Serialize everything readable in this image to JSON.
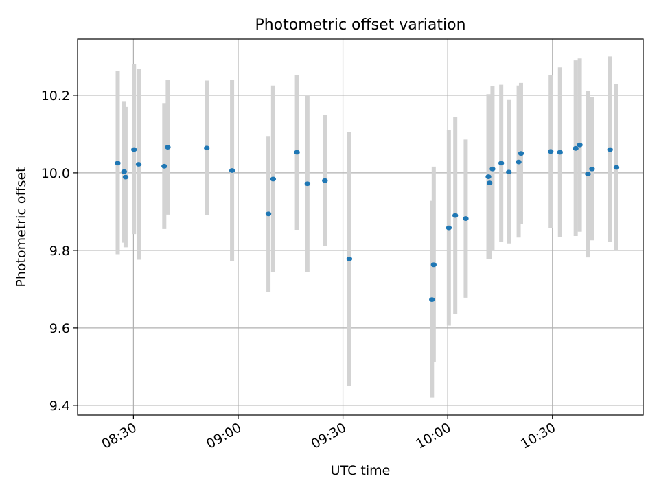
{
  "chart_data": {
    "type": "scatter",
    "title": "Photometric offset variation",
    "xlabel": "UTC time",
    "ylabel": "Photometric offset",
    "xlim": [
      "08:14:00",
      "10:56:00"
    ],
    "ylim": [
      9.375,
      10.345
    ],
    "x_ticks": [
      "08:30",
      "09:00",
      "09:30",
      "10:00",
      "10:30"
    ],
    "y_ticks": [
      9.4,
      9.6,
      9.8,
      10.0,
      10.2
    ],
    "y_tick_labels": [
      "9.4",
      "9.6",
      "9.8",
      "10.0",
      "10.2"
    ],
    "grid": true,
    "colors": {
      "point": "#1f77b4",
      "errorbar": "#d3d3d3",
      "grid": "#b0b0b0"
    },
    "series": [
      {
        "points": [
          {
            "x": "08:25:30",
            "y": 10.025,
            "ylo": 9.79,
            "yhi": 10.262
          },
          {
            "x": "08:27:20",
            "y": 10.003,
            "ylo": 9.82,
            "yhi": 10.185
          },
          {
            "x": "08:27:45",
            "y": 9.989,
            "ylo": 9.808,
            "yhi": 10.17
          },
          {
            "x": "08:30:10",
            "y": 10.06,
            "ylo": 9.842,
            "yhi": 10.28
          },
          {
            "x": "08:31:30",
            "y": 10.022,
            "ylo": 9.776,
            "yhi": 10.268
          },
          {
            "x": "08:38:50",
            "y": 10.017,
            "ylo": 9.855,
            "yhi": 10.18
          },
          {
            "x": "08:39:50",
            "y": 10.066,
            "ylo": 9.892,
            "yhi": 10.24
          },
          {
            "x": "08:51:00",
            "y": 10.064,
            "ylo": 9.89,
            "yhi": 10.238
          },
          {
            "x": "08:58:15",
            "y": 10.006,
            "ylo": 9.773,
            "yhi": 10.24
          },
          {
            "x": "09:08:40",
            "y": 9.894,
            "ylo": 9.692,
            "yhi": 10.095
          },
          {
            "x": "09:10:00",
            "y": 9.984,
            "ylo": 9.745,
            "yhi": 10.225
          },
          {
            "x": "09:16:50",
            "y": 10.053,
            "ylo": 9.853,
            "yhi": 10.253
          },
          {
            "x": "09:19:50",
            "y": 9.972,
            "ylo": 9.745,
            "yhi": 10.198
          },
          {
            "x": "09:24:50",
            "y": 9.98,
            "ylo": 9.812,
            "yhi": 10.15
          },
          {
            "x": "09:31:50",
            "y": 9.778,
            "ylo": 9.45,
            "yhi": 10.106
          },
          {
            "x": "09:55:30",
            "y": 9.673,
            "ylo": 9.42,
            "yhi": 9.928
          },
          {
            "x": "09:56:00",
            "y": 9.763,
            "ylo": 9.512,
            "yhi": 10.016
          },
          {
            "x": "10:00:20",
            "y": 9.858,
            "ylo": 9.606,
            "yhi": 10.11
          },
          {
            "x": "10:02:10",
            "y": 9.89,
            "ylo": 9.637,
            "yhi": 10.145
          },
          {
            "x": "10:05:10",
            "y": 9.882,
            "ylo": 9.678,
            "yhi": 10.086
          },
          {
            "x": "10:11:40",
            "y": 9.99,
            "ylo": 9.778,
            "yhi": 10.203
          },
          {
            "x": "10:12:00",
            "y": 9.974,
            "ylo": 9.777,
            "yhi": 10.17
          },
          {
            "x": "10:12:50",
            "y": 10.01,
            "ylo": 9.8,
            "yhi": 10.223
          },
          {
            "x": "10:15:20",
            "y": 10.025,
            "ylo": 9.822,
            "yhi": 10.227
          },
          {
            "x": "10:17:30",
            "y": 10.002,
            "ylo": 9.818,
            "yhi": 10.188
          },
          {
            "x": "10:20:20",
            "y": 10.028,
            "ylo": 9.833,
            "yhi": 10.225
          },
          {
            "x": "10:21:00",
            "y": 10.05,
            "ylo": 9.868,
            "yhi": 10.232
          },
          {
            "x": "10:29:30",
            "y": 10.055,
            "ylo": 9.858,
            "yhi": 10.253
          },
          {
            "x": "10:32:10",
            "y": 10.053,
            "ylo": 9.835,
            "yhi": 10.272
          },
          {
            "x": "10:36:40",
            "y": 10.063,
            "ylo": 9.837,
            "yhi": 10.29
          },
          {
            "x": "10:37:50",
            "y": 10.072,
            "ylo": 9.848,
            "yhi": 10.295
          },
          {
            "x": "10:40:10",
            "y": 9.997,
            "ylo": 9.782,
            "yhi": 10.212
          },
          {
            "x": "10:41:20",
            "y": 10.01,
            "ylo": 9.826,
            "yhi": 10.195
          },
          {
            "x": "10:46:30",
            "y": 10.06,
            "ylo": 9.822,
            "yhi": 10.3
          },
          {
            "x": "10:48:20",
            "y": 10.014,
            "ylo": 9.8,
            "yhi": 10.23
          }
        ]
      }
    ]
  }
}
